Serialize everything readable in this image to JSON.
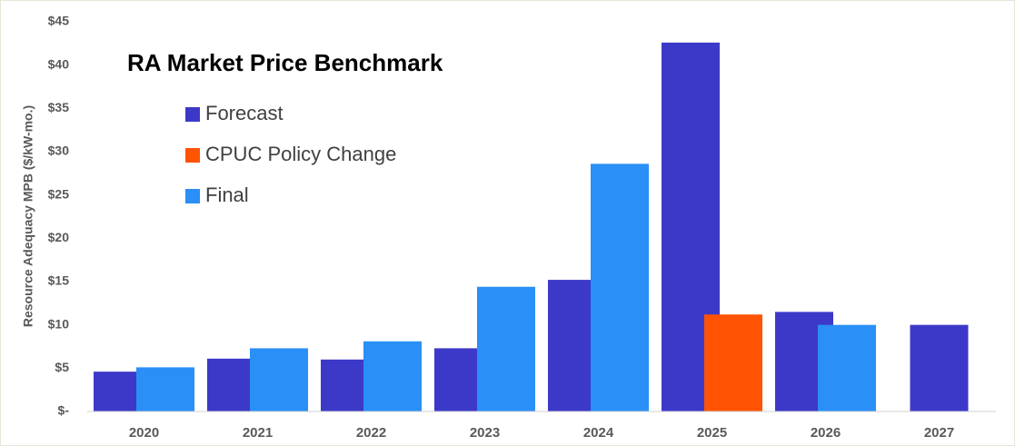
{
  "chart_data": {
    "type": "bar",
    "title": "RA Market Price Benchmark",
    "y_label": "Resource Adequacy MPB ($/kW-mo.)",
    "categories": [
      "2020",
      "2021",
      "2022",
      "2023",
      "2024",
      "2025",
      "2026",
      "2027"
    ],
    "series": [
      {
        "name": "Forecast",
        "color": "#3c39c9",
        "values": [
          4.6,
          6.1,
          6.0,
          7.3,
          15.2,
          42.6,
          11.5,
          10.0
        ]
      },
      {
        "name": "CPUC Policy Change",
        "color": "#ff5304",
        "values": [
          null,
          null,
          null,
          null,
          null,
          11.2,
          null,
          null
        ]
      },
      {
        "name": "Final",
        "color": "#2a8ff6",
        "values": [
          5.1,
          7.3,
          8.1,
          14.4,
          28.6,
          null,
          10.0,
          null
        ]
      }
    ],
    "ylim": [
      0,
      45
    ],
    "yticks": [
      {
        "value": 0,
        "label": "$-"
      },
      {
        "value": 5,
        "label": "$5"
      },
      {
        "value": 10,
        "label": "$10"
      },
      {
        "value": 15,
        "label": "$15"
      },
      {
        "value": 20,
        "label": "$20"
      },
      {
        "value": 25,
        "label": "$25"
      },
      {
        "value": 30,
        "label": "$30"
      },
      {
        "value": 35,
        "label": "$35"
      },
      {
        "value": 40,
        "label": "$40"
      },
      {
        "value": 45,
        "label": "$45"
      }
    ],
    "legend": "upper left"
  }
}
